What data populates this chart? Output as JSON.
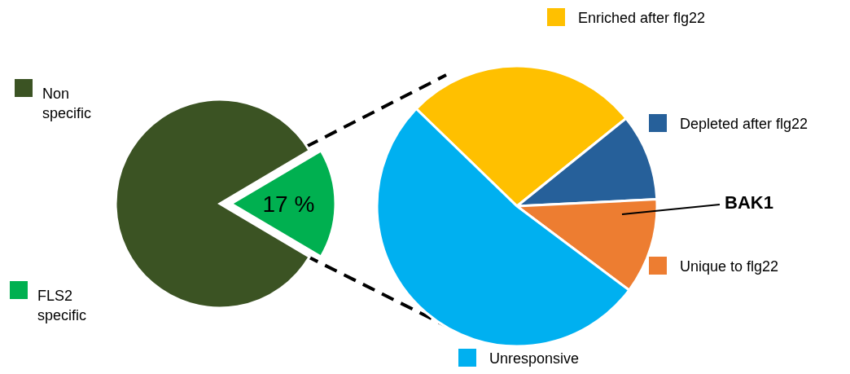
{
  "chart_data": [
    {
      "type": "pie",
      "categories": [
        "Non\nspecific",
        "FLS2\nspecific"
      ],
      "values": [
        83,
        17
      ],
      "colors": [
        "#3b5323",
        "#00b050"
      ],
      "value_labels": [
        null,
        "17 %"
      ],
      "legend": "left"
    },
    {
      "type": "pie",
      "categories": [
        "Enriched after flg22",
        "Depleted after flg22",
        "Unique to flg22",
        "Unresponsive"
      ],
      "values": [
        27,
        10,
        11,
        52
      ],
      "colors": [
        "#ffc000",
        "#26609a",
        "#ed7d31",
        "#00b0f0"
      ],
      "legend": "right",
      "annotations": [
        "BAK1"
      ]
    }
  ]
}
